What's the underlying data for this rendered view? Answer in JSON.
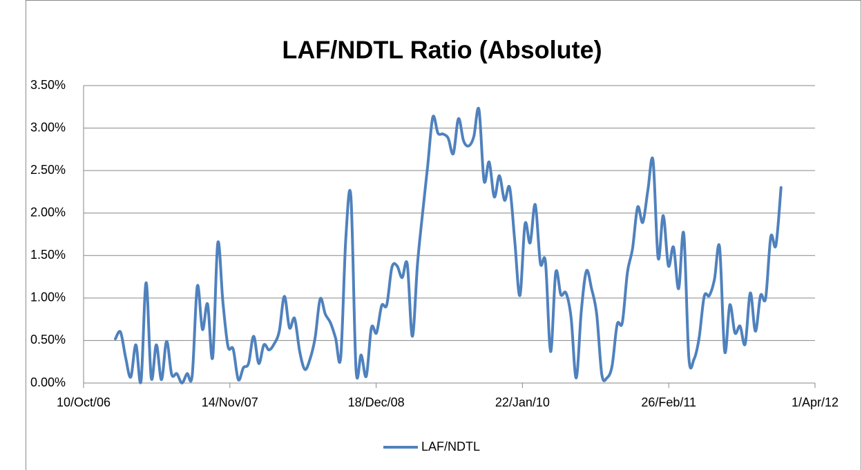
{
  "chart_data": {
    "type": "line",
    "title": "LAF/NDTL Ratio (Absolute)",
    "x": [
      "2007-01-05",
      "2007-01-19",
      "2007-02-02",
      "2007-02-16",
      "2007-03-02",
      "2007-03-16",
      "2007-03-30",
      "2007-04-13",
      "2007-04-27",
      "2007-05-11",
      "2007-05-25",
      "2007-06-08",
      "2007-06-22",
      "2007-07-06",
      "2007-07-20",
      "2007-08-03",
      "2007-08-17",
      "2007-08-31",
      "2007-09-14",
      "2007-09-28",
      "2007-10-12",
      "2007-10-26",
      "2007-11-09",
      "2007-11-23",
      "2007-12-07",
      "2007-12-21",
      "2008-01-04",
      "2008-01-18",
      "2008-02-01",
      "2008-02-15",
      "2008-02-29",
      "2008-03-14",
      "2008-03-28",
      "2008-04-11",
      "2008-04-25",
      "2008-05-09",
      "2008-05-23",
      "2008-06-06",
      "2008-06-20",
      "2008-07-04",
      "2008-07-18",
      "2008-08-01",
      "2008-08-15",
      "2008-08-29",
      "2008-09-12",
      "2008-09-26",
      "2008-10-10",
      "2008-10-24",
      "2008-11-07",
      "2008-11-21",
      "2008-12-05",
      "2008-12-19",
      "2009-01-02",
      "2009-01-16",
      "2009-01-30",
      "2009-02-13",
      "2009-02-27",
      "2009-03-13",
      "2009-03-27",
      "2009-04-10",
      "2009-04-24",
      "2009-05-08",
      "2009-05-22",
      "2009-06-05",
      "2009-06-19",
      "2009-07-03",
      "2009-07-17",
      "2009-07-31",
      "2009-08-14",
      "2009-08-28",
      "2009-09-11",
      "2009-09-25",
      "2009-10-09",
      "2009-10-23",
      "2009-11-06",
      "2009-11-20",
      "2009-12-04",
      "2009-12-18",
      "2010-01-01",
      "2010-01-15",
      "2010-01-29",
      "2010-02-12",
      "2010-02-26",
      "2010-03-12",
      "2010-03-26",
      "2010-04-09",
      "2010-04-23",
      "2010-05-07",
      "2010-05-21",
      "2010-06-04",
      "2010-06-18",
      "2010-07-02",
      "2010-07-16",
      "2010-07-30",
      "2010-08-13",
      "2010-08-27",
      "2010-09-10",
      "2010-09-24",
      "2010-10-08",
      "2010-10-22",
      "2010-11-05",
      "2010-11-19",
      "2010-12-03",
      "2010-12-17",
      "2010-12-31",
      "2011-01-14",
      "2011-01-28",
      "2011-02-11",
      "2011-02-25",
      "2011-03-11",
      "2011-03-25",
      "2011-04-08",
      "2011-04-22",
      "2011-05-06",
      "2011-05-20",
      "2011-06-03",
      "2011-06-17",
      "2011-07-01",
      "2011-07-15",
      "2011-07-29",
      "2011-08-12",
      "2011-08-26",
      "2011-09-09",
      "2011-09-23",
      "2011-10-07",
      "2011-10-21",
      "2011-11-04",
      "2011-11-18",
      "2011-12-02",
      "2011-12-16",
      "2011-12-30"
    ],
    "series": [
      {
        "name": "LAF/NDTL",
        "color": "#4f81bd",
        "values": [
          0.52,
          0.6,
          0.3,
          0.07,
          0.45,
          0.02,
          1.18,
          0.06,
          0.45,
          0.04,
          0.49,
          0.1,
          0.11,
          0.0,
          0.11,
          0.09,
          1.14,
          0.63,
          0.93,
          0.3,
          1.65,
          0.95,
          0.43,
          0.4,
          0.04,
          0.18,
          0.23,
          0.55,
          0.23,
          0.45,
          0.39,
          0.46,
          0.61,
          1.02,
          0.65,
          0.76,
          0.37,
          0.16,
          0.28,
          0.53,
          0.99,
          0.81,
          0.71,
          0.53,
          0.3,
          1.7,
          2.19,
          0.16,
          0.33,
          0.08,
          0.65,
          0.59,
          0.91,
          0.92,
          1.36,
          1.38,
          1.24,
          1.4,
          0.55,
          1.4,
          2.0,
          2.56,
          3.13,
          2.94,
          2.93,
          2.88,
          2.7,
          3.11,
          2.85,
          2.79,
          2.9,
          3.22,
          2.38,
          2.6,
          2.19,
          2.44,
          2.15,
          2.3,
          1.67,
          1.03,
          1.87,
          1.65,
          2.1,
          1.41,
          1.42,
          0.37,
          1.3,
          1.04,
          1.06,
          0.77,
          0.06,
          0.85,
          1.32,
          1.11,
          0.81,
          0.1,
          0.06,
          0.2,
          0.69,
          0.71,
          1.3,
          1.58,
          2.07,
          1.89,
          2.27,
          2.62,
          1.47,
          1.97,
          1.38,
          1.6,
          1.11,
          1.76,
          0.3,
          0.28,
          0.53,
          1.02,
          1.03,
          1.22,
          1.6,
          0.37,
          0.92,
          0.59,
          0.67,
          0.46,
          1.06,
          0.61,
          1.03,
          1.0,
          1.72,
          1.62,
          2.3
        ]
      }
    ],
    "xlim": [
      "2006-10-10",
      "2012-04-01"
    ],
    "xticks": [
      {
        "value": "2006-10-10",
        "label": "10/Oct/06"
      },
      {
        "value": "2007-11-14",
        "label": "14/Nov/07"
      },
      {
        "value": "2008-12-18",
        "label": "18/Dec/08"
      },
      {
        "value": "2010-01-22",
        "label": "22/Jan/10"
      },
      {
        "value": "2011-02-26",
        "label": "26/Feb/11"
      },
      {
        "value": "2012-04-01",
        "label": "1/Apr/12"
      }
    ],
    "ylim": [
      0,
      3.5
    ],
    "yticks": [
      {
        "value": 0,
        "label": "0.00%"
      },
      {
        "value": 0.5,
        "label": "0.50%"
      },
      {
        "value": 1,
        "label": "1.00%"
      },
      {
        "value": 1.5,
        "label": "1.50%"
      },
      {
        "value": 2,
        "label": "2.00%"
      },
      {
        "value": 2.5,
        "label": "2.50%"
      },
      {
        "value": 3,
        "label": "3.00%"
      },
      {
        "value": 3.5,
        "label": "3.50%"
      }
    ],
    "grid": true,
    "legend": "bottom"
  }
}
